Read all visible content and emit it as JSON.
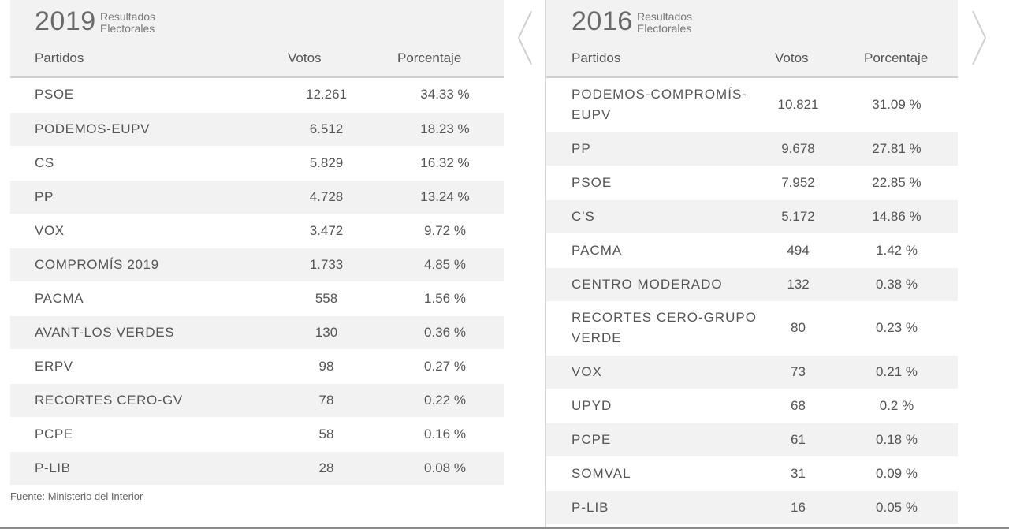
{
  "tables": [
    {
      "year": "2019",
      "subtitle_line1": "Resultados",
      "subtitle_line2": "Electorales",
      "headers": {
        "party": "Partidos",
        "votes": "Votos",
        "pct": "Porcentaje"
      },
      "rows": [
        {
          "party": "PSOE",
          "votes": "12.261",
          "pct": "34.33 %"
        },
        {
          "party": "PODEMOS-EUPV",
          "votes": "6.512",
          "pct": "18.23 %"
        },
        {
          "party": "CS",
          "votes": "5.829",
          "pct": "16.32 %"
        },
        {
          "party": "PP",
          "votes": "4.728",
          "pct": "13.24 %"
        },
        {
          "party": "VOX",
          "votes": "3.472",
          "pct": "9.72 %"
        },
        {
          "party": "COMPROMÍS 2019",
          "votes": "1.733",
          "pct": "4.85 %"
        },
        {
          "party": "PACMA",
          "votes": "558",
          "pct": "1.56 %"
        },
        {
          "party": "AVANT-LOS VERDES",
          "votes": "130",
          "pct": "0.36 %"
        },
        {
          "party": "ERPV",
          "votes": "98",
          "pct": "0.27 %"
        },
        {
          "party": "RECORTES CERO-GV",
          "votes": "78",
          "pct": "0.22 %"
        },
        {
          "party": "PCPE",
          "votes": "58",
          "pct": "0.16 %"
        },
        {
          "party": "P-LIB",
          "votes": "28",
          "pct": "0.08 %"
        }
      ],
      "source": "Fuente: Ministerio del Interior"
    },
    {
      "year": "2016",
      "subtitle_line1": "Resultados",
      "subtitle_line2": "Electorales",
      "headers": {
        "party": "Partidos",
        "votes": "Votos",
        "pct": "Porcentaje"
      },
      "rows": [
        {
          "party": "PODEMOS-COMPROMÍS-EUPV",
          "votes": "10.821",
          "pct": "31.09 %"
        },
        {
          "party": "PP",
          "votes": "9.678",
          "pct": "27.81 %"
        },
        {
          "party": "PSOE",
          "votes": "7.952",
          "pct": "22.85 %"
        },
        {
          "party": "C'S",
          "votes": "5.172",
          "pct": "14.86 %"
        },
        {
          "party": "PACMA",
          "votes": "494",
          "pct": "1.42 %"
        },
        {
          "party": "CENTRO MODERADO",
          "votes": "132",
          "pct": "0.38 %"
        },
        {
          "party": "RECORTES CERO-GRUPO VERDE",
          "votes": "80",
          "pct": "0.23 %"
        },
        {
          "party": "VOX",
          "votes": "73",
          "pct": "0.21 %"
        },
        {
          "party": "UPYD",
          "votes": "68",
          "pct": "0.2 %"
        },
        {
          "party": "PCPE",
          "votes": "61",
          "pct": "0.18 %"
        },
        {
          "party": "SOMVAL",
          "votes": "31",
          "pct": "0.09 %"
        },
        {
          "party": "P-LIB",
          "votes": "16",
          "pct": "0.05 %"
        }
      ]
    }
  ],
  "nav": {
    "prev_icon": "chevron-left-icon",
    "next_icon": "chevron-right-icon"
  }
}
